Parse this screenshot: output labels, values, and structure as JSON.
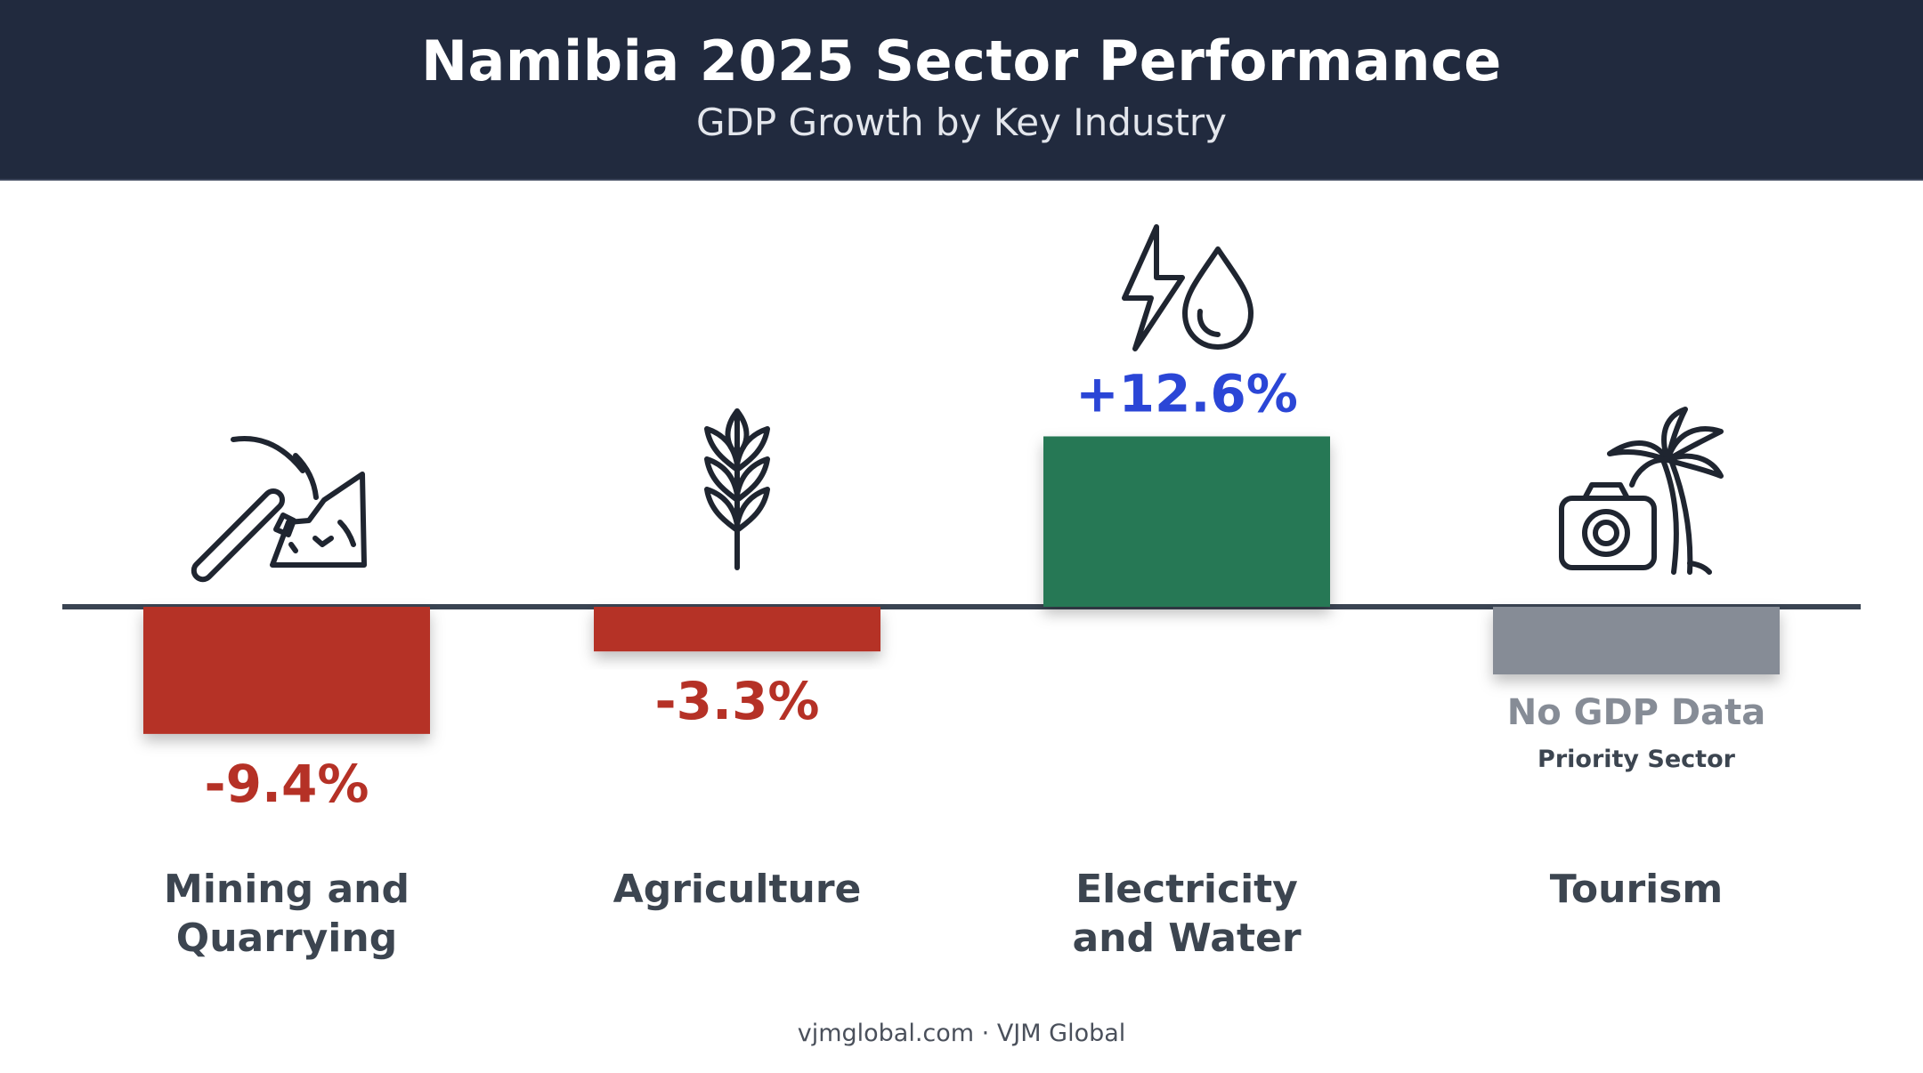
{
  "header": {
    "title": "Namibia 2025 Sector Performance",
    "subtitle": "GDP Growth by Key Industry"
  },
  "chart_data": {
    "type": "bar",
    "title": "Namibia 2025 Sector Performance",
    "subtitle": "GDP Growth by Key Industry",
    "xlabel": "",
    "ylabel": "",
    "value_unit": "%",
    "grid": false,
    "legend": "none",
    "categories": [
      {
        "label_lines": [
          "Mining and",
          "Quarrying"
        ],
        "value": -9.4,
        "value_label": "-9.4%",
        "color": "#b53126",
        "icon": "pickaxe-rocks-icon"
      },
      {
        "label_lines": [
          "Agriculture"
        ],
        "value": -3.3,
        "value_label": "-3.3%",
        "color": "#b53126",
        "icon": "wheat-icon"
      },
      {
        "label_lines": [
          "Electricity",
          "and Water"
        ],
        "value": 12.6,
        "value_label": "+12.6%",
        "color": "#257855",
        "icon": "lightning-water-drop-icon"
      },
      {
        "label_lines": [
          "Tourism"
        ],
        "value": null,
        "value_label": "No GDP Data",
        "note": "Priority Sector",
        "color": "#868c96",
        "icon": "camera-palm-tree-icon"
      }
    ],
    "colors": {
      "negative": "#b53126",
      "positive": "#257855",
      "no_data": "#868c96",
      "positive_label": "#2b46d6",
      "category_label": "#3c4550"
    }
  },
  "footer": {
    "text": "vjmglobal.com · VJM Global"
  }
}
